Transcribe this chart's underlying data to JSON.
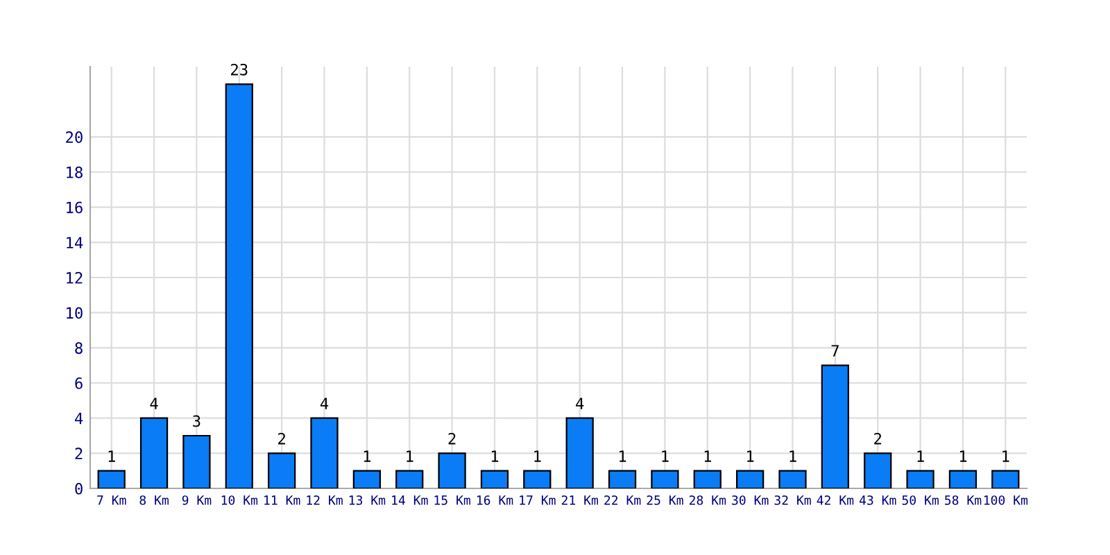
{
  "chart_data": {
    "type": "bar",
    "categories": [
      "7 Km",
      "8 Km",
      "9 Km",
      "10 Km",
      "11 Km",
      "12 Km",
      "13 Km",
      "14 Km",
      "15 Km",
      "16 Km",
      "17 Km",
      "21 Km",
      "22 Km",
      "25 Km",
      "28 Km",
      "30 Km",
      "32 Km",
      "42 Km",
      "43 Km",
      "50 Km",
      "58 Km",
      "100 Km"
    ],
    "values": [
      1,
      4,
      3,
      23,
      2,
      4,
      1,
      1,
      2,
      1,
      1,
      4,
      1,
      1,
      1,
      1,
      1,
      7,
      2,
      1,
      1,
      1
    ],
    "color": "#0a7cf5",
    "ylim": [
      0,
      24
    ],
    "yticks": [
      0,
      2,
      4,
      6,
      8,
      10,
      12,
      14,
      16,
      18,
      20
    ],
    "grid": true,
    "data_labels": true
  }
}
